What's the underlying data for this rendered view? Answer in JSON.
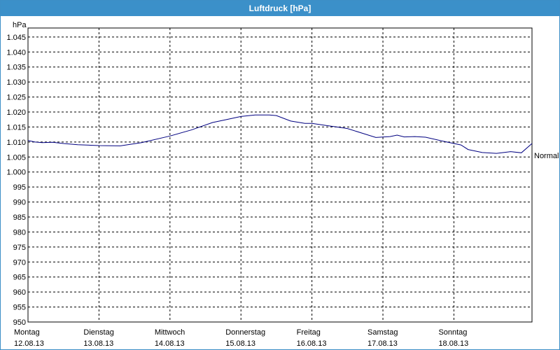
{
  "window": {
    "title": "Luftdruck [hPa]"
  },
  "chart_data": {
    "type": "line",
    "title": "Luftdruck [hPa]",
    "ylabel": "hPa",
    "ylim": [
      950,
      1048
    ],
    "yticks": [
      950,
      955,
      960,
      965,
      970,
      975,
      980,
      985,
      990,
      995,
      1000,
      1005,
      1010,
      1015,
      1020,
      1025,
      1030,
      1035,
      1040,
      1045
    ],
    "ytick_labels": [
      "950",
      "955",
      "960",
      "965",
      "970",
      "975",
      "980",
      "985",
      "990",
      "995",
      "1.000",
      "1.005",
      "1.010",
      "1.015",
      "1.020",
      "1.025",
      "1.030",
      "1.035",
      "1.040",
      "1.045"
    ],
    "xlim": [
      0,
      7.1
    ],
    "days": [
      {
        "name": "Montag",
        "date": "12.08.13"
      },
      {
        "name": "Dienstag",
        "date": "13.08.13"
      },
      {
        "name": "Mittwoch",
        "date": "14.08.13"
      },
      {
        "name": "Donnerstag",
        "date": "15.08.13"
      },
      {
        "name": "Freitag",
        "date": "16.08.13"
      },
      {
        "name": "Samstag",
        "date": "17.08.13"
      },
      {
        "name": "Sonntag",
        "date": "18.08.13"
      }
    ],
    "grid": true,
    "reference": {
      "label": "Normal",
      "value": 1005.5
    },
    "series": [
      {
        "color": "#000080",
        "x": [
          0,
          0.1,
          0.2,
          0.35,
          0.5,
          0.7,
          1.0,
          1.3,
          1.6,
          2.0,
          2.3,
          2.6,
          2.8,
          3.0,
          3.2,
          3.4,
          3.5,
          3.7,
          3.9,
          4.0,
          4.2,
          4.35,
          4.5,
          4.7,
          4.9,
          5.1,
          5.2,
          5.3,
          5.45,
          5.6,
          5.9,
          6.1,
          6.2,
          6.4,
          6.6,
          6.8,
          6.95,
          7.1
        ],
        "values": [
          1010.5,
          1010,
          1009.8,
          1009.9,
          1009.5,
          1009.1,
          1008.8,
          1008.7,
          1009.8,
          1012,
          1014,
          1016.5,
          1017.5,
          1018.5,
          1019,
          1019,
          1018.8,
          1017,
          1016.2,
          1016.2,
          1015.5,
          1015,
          1014.5,
          1013,
          1011.5,
          1011.8,
          1012.3,
          1011.7,
          1011.8,
          1011.6,
          1010,
          1009,
          1007.5,
          1006.5,
          1006.2,
          1006.8,
          1006.4,
          1009.5
        ]
      }
    ]
  }
}
